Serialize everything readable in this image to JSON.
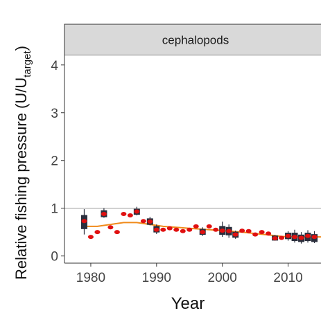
{
  "chart_data": {
    "type": "scatter",
    "panel_label": "cephalopods",
    "xlabel": "Year",
    "ylabel_main": "Relative fishing pressure (U/U",
    "ylabel_sub": "target",
    "ylabel_close": ")",
    "xlim": [
      1976,
      2015
    ],
    "ylim": [
      -0.15,
      4.2
    ],
    "x_ticks": [
      1980,
      1990,
      2000,
      2010
    ],
    "y_ticks": [
      0,
      1,
      2,
      3,
      4
    ],
    "reference_line": 1,
    "grid": false,
    "colors": {
      "point": "#e01010",
      "box": "#2a2f3d",
      "smooth": "#f08a1a",
      "reference": "#bdbdbd",
      "strip": "#d9d9d9"
    },
    "series": [
      {
        "x": [
          1979,
          1980,
          1981,
          1982,
          1983,
          1984,
          1985,
          1986,
          1987,
          1988,
          1989,
          1990,
          1991,
          1992,
          1993,
          1994,
          1995,
          1996,
          1997,
          1998,
          1999,
          2000,
          2001,
          2002,
          2003,
          2004,
          2005,
          2006,
          2007,
          2008,
          2009,
          2010,
          2011,
          2012,
          2013,
          2014
        ],
        "y": [
          0.73,
          0.4,
          0.5,
          0.88,
          0.6,
          0.5,
          0.88,
          0.85,
          0.93,
          0.73,
          0.72,
          0.55,
          0.55,
          0.58,
          0.55,
          0.52,
          0.55,
          0.62,
          0.5,
          0.62,
          0.55,
          0.53,
          0.52,
          0.45,
          0.53,
          0.52,
          0.45,
          0.5,
          0.47,
          0.37,
          0.38,
          0.42,
          0.4,
          0.38,
          0.42,
          0.4
        ]
      }
    ],
    "boxes": [
      {
        "x": 1979,
        "low": 0.45,
        "q1": 0.57,
        "q3": 0.85,
        "high": 0.98
      },
      {
        "x": 1982,
        "low": 0.8,
        "q1": 0.82,
        "q3": 0.95,
        "high": 1.0
      },
      {
        "x": 1987,
        "low": 0.85,
        "q1": 0.87,
        "q3": 0.98,
        "high": 1.03
      },
      {
        "x": 1989,
        "low": 0.64,
        "q1": 0.66,
        "q3": 0.78,
        "high": 0.82
      },
      {
        "x": 1990,
        "low": 0.46,
        "q1": 0.5,
        "q3": 0.62,
        "high": 0.66
      },
      {
        "x": 1997,
        "low": 0.42,
        "q1": 0.45,
        "q3": 0.56,
        "high": 0.6
      },
      {
        "x": 2000,
        "low": 0.4,
        "q1": 0.45,
        "q3": 0.62,
        "high": 0.72
      },
      {
        "x": 2001,
        "low": 0.38,
        "q1": 0.44,
        "q3": 0.6,
        "high": 0.66
      },
      {
        "x": 2002,
        "low": 0.36,
        "q1": 0.39,
        "q3": 0.5,
        "high": 0.53
      },
      {
        "x": 2008,
        "low": 0.32,
        "q1": 0.33,
        "q3": 0.42,
        "high": 0.44
      },
      {
        "x": 2010,
        "low": 0.32,
        "q1": 0.36,
        "q3": 0.48,
        "high": 0.52
      },
      {
        "x": 2011,
        "low": 0.28,
        "q1": 0.32,
        "q3": 0.48,
        "high": 0.55
      },
      {
        "x": 2012,
        "low": 0.26,
        "q1": 0.3,
        "q3": 0.44,
        "high": 0.5
      },
      {
        "x": 2013,
        "low": 0.28,
        "q1": 0.32,
        "q3": 0.48,
        "high": 0.54
      },
      {
        "x": 2014,
        "low": 0.27,
        "q1": 0.3,
        "q3": 0.45,
        "high": 0.52
      }
    ],
    "smooth": {
      "x": [
        1979,
        1981,
        1983,
        1985,
        1987,
        1989,
        1991,
        1993,
        1995,
        1997,
        1999,
        2001,
        2003,
        2005,
        2007,
        2009,
        2011,
        2013,
        2015
      ],
      "y": [
        0.62,
        0.62,
        0.66,
        0.7,
        0.7,
        0.66,
        0.62,
        0.6,
        0.58,
        0.56,
        0.54,
        0.52,
        0.5,
        0.47,
        0.44,
        0.41,
        0.4,
        0.4,
        0.4
      ]
    }
  }
}
